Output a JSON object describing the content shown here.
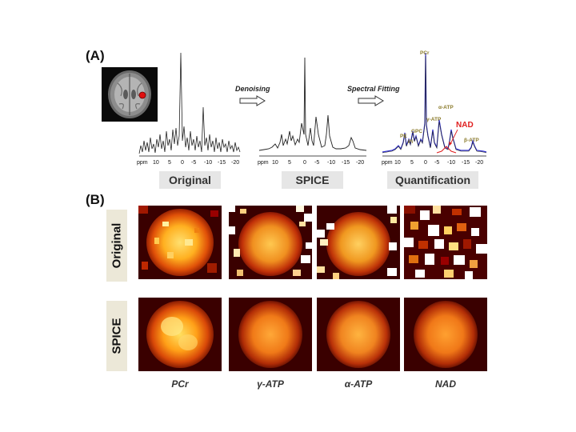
{
  "panel_a_label": "(A)",
  "panel_b_label": "(B)",
  "steps": {
    "denoising": "Denoising",
    "fitting": "Spectral Fitting"
  },
  "captions": {
    "original": "Original",
    "spice": "SPICE",
    "quantification": "Quantification"
  },
  "axis": {
    "ppm": "ppm",
    "ticks": [
      "10",
      "5",
      "0",
      "-5",
      "-10",
      "-15",
      "-20"
    ]
  },
  "peaks": {
    "pcr": "PCr",
    "pe": "PE",
    "pi": "Pi",
    "gpc": "GPC",
    "gatp": "γ-ATP",
    "aatp": "α-ATP",
    "batp": "β-ATP",
    "nad": "NAD"
  },
  "rows": {
    "original": "Original",
    "spice": "SPICE"
  },
  "metabolites": [
    "PCr",
    "γ-ATP",
    "α-ATP",
    "NAD"
  ],
  "colors": {
    "fit_blue": "#3030d0",
    "nad_red": "#e02020",
    "roi_red": "#e01010"
  }
}
